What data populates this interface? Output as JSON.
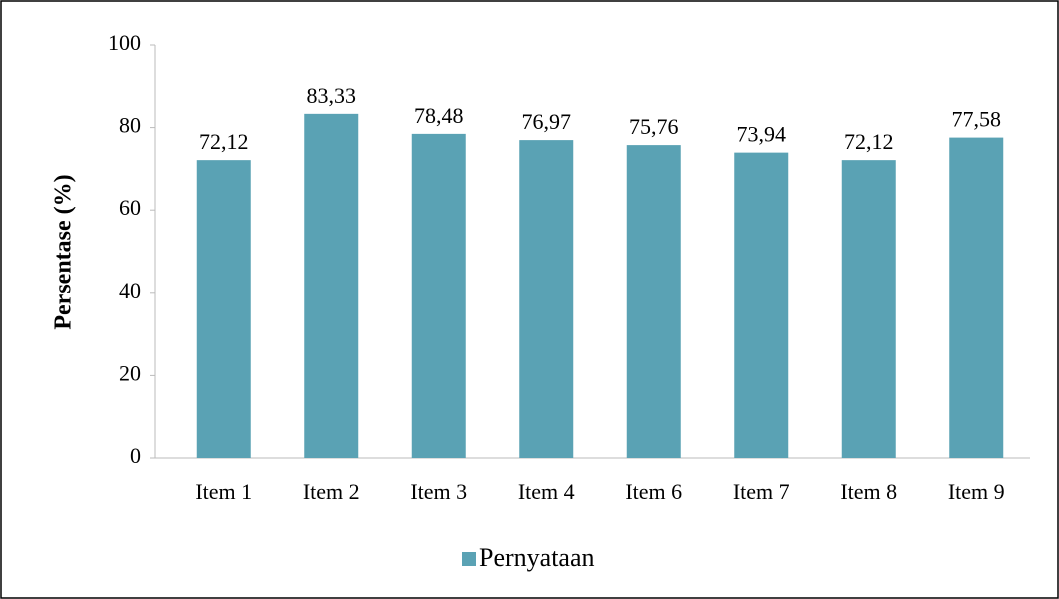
{
  "chart_data": {
    "type": "bar",
    "y_label": "Persentase (%)",
    "categories": [
      "Item 1",
      "Item 2",
      "Item 3",
      "Item 4",
      "Item 6",
      "Item 7",
      "Item 8",
      "Item 9"
    ],
    "series": [
      {
        "name": "Pernyataan",
        "color": "#5aa2b4",
        "values": [
          72.12,
          83.33,
          78.48,
          76.97,
          75.76,
          73.94,
          72.12,
          77.58
        ],
        "value_labels": [
          "72,12",
          "83,33",
          "78,48",
          "76,97",
          "75,76",
          "73,94",
          "72,12",
          "77,58"
        ]
      }
    ],
    "ylim": [
      0,
      100
    ],
    "yticks": [
      0,
      20,
      40,
      60,
      80,
      100
    ],
    "grid": false,
    "legend": "bottom"
  }
}
